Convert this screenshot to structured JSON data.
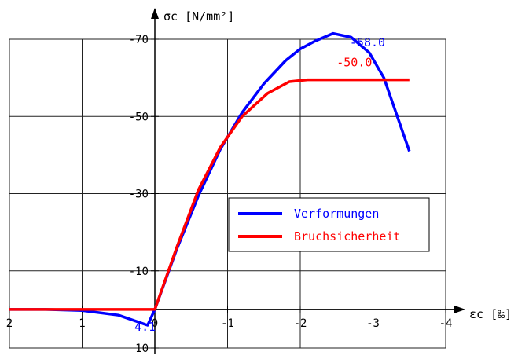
{
  "chart_data": {
    "type": "line",
    "xlabel": "εc [‰]",
    "ylabel": "σc [N/mm²]",
    "xlim": [
      2,
      -4
    ],
    "ylim": [
      10,
      -70
    ],
    "x_ticks": [
      2,
      1,
      0,
      -1,
      -2,
      -3,
      -4
    ],
    "x_tick_labels": [
      "2",
      "1",
      "0",
      "-1",
      "-2",
      "-3",
      "-4"
    ],
    "y_ticks": [
      -70,
      -50,
      -30,
      -10,
      10
    ],
    "y_tick_labels": [
      "-70",
      "-50",
      "-30",
      "-10",
      "10"
    ],
    "grid": true,
    "legend_position": "center-right",
    "series": [
      {
        "name": "Verformungen",
        "color": "#0000ff",
        "x": [
          2,
          1.5,
          1.0,
          0.5,
          0.1,
          0,
          -0.3,
          -0.6,
          -0.9,
          -1.2,
          -1.5,
          -1.8,
          -2.0,
          -2.2,
          -2.45,
          -2.7,
          -2.95,
          -3.15,
          -3.5
        ],
        "y": [
          0,
          0,
          0.3,
          1.5,
          4.1,
          0,
          -15.5,
          -29.5,
          -41.5,
          -51,
          -58.5,
          -64.5,
          -67.5,
          -69.5,
          -71.5,
          -70.5,
          -66.5,
          -60,
          -41
        ]
      },
      {
        "name": "Bruchsicherheit",
        "color": "#ff0000",
        "x": [
          2,
          1.5,
          1.0,
          0.5,
          0,
          -0.3,
          -0.6,
          -0.9,
          -1.2,
          -1.55,
          -1.85,
          -2.1,
          -2.5,
          -3.0,
          -3.5
        ],
        "y": [
          0,
          0,
          0,
          0,
          0,
          -16,
          -31,
          -42,
          -50,
          -56,
          -59,
          -59.5,
          -59.5,
          -59.5,
          -59.5
        ]
      }
    ],
    "annotations": [
      {
        "text": "-58.0",
        "color": "#0000ff",
        "x": -2.68,
        "y": -68.2
      },
      {
        "text": "-50.0",
        "color": "#ff0000",
        "x": -2.5,
        "y": -63
      },
      {
        "text": "4.1",
        "color": "#0000ff",
        "x": 0.28,
        "y": 5.5
      }
    ]
  }
}
